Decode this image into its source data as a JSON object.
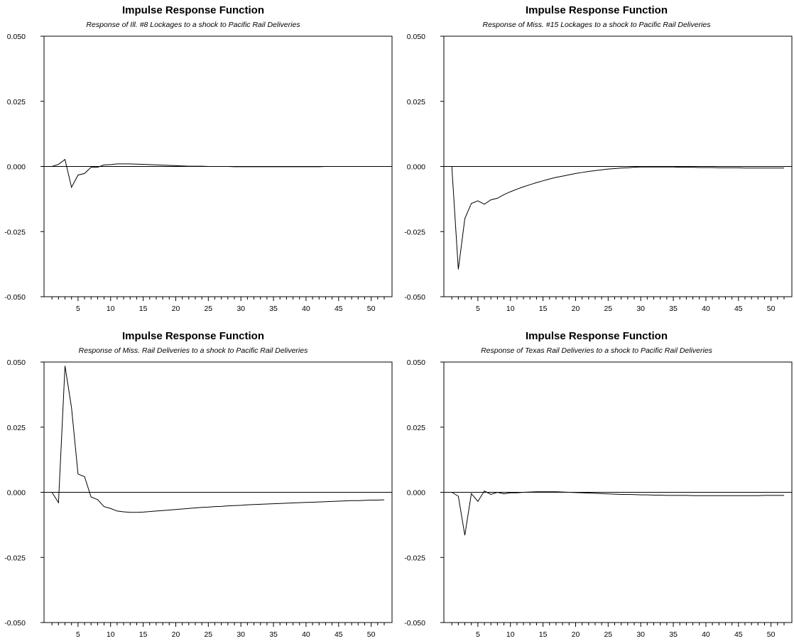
{
  "chart_data": [
    {
      "type": "line",
      "title": "Impulse Response Function",
      "subtitle": "Response of Ill. #8 Lockages to a shock to Pacific Rail Deliveries",
      "xlabel": "",
      "ylabel": "",
      "xlim": [
        0,
        52
      ],
      "ylim": [
        -0.05,
        0.05
      ],
      "yticks": [
        "0.050",
        "0.025",
        "0.000",
        "-0.025",
        "-0.050"
      ],
      "xticks": [
        "5",
        "10",
        "15",
        "20",
        "25",
        "30",
        "35",
        "40",
        "45",
        "50"
      ],
      "x": [
        1,
        2,
        3,
        4,
        5,
        6,
        7,
        8,
        9,
        10,
        11,
        12,
        13,
        14,
        15,
        16,
        17,
        18,
        19,
        20,
        21,
        22,
        23,
        24,
        25,
        26,
        27,
        28,
        29,
        30,
        31,
        32,
        33,
        34,
        35,
        36,
        37,
        38,
        39,
        40,
        41,
        42,
        43,
        44,
        45,
        46,
        47,
        48,
        49,
        50,
        51,
        52
      ],
      "series": [
        {
          "values": [
            0,
            0.0008,
            0.0027,
            -0.008,
            -0.0033,
            -0.0027,
            -0.0003,
            -0.0003,
            0.0006,
            0.0007,
            0.001,
            0.001,
            0.001,
            0.0009,
            0.0008,
            0.0007,
            0.0006,
            0.0005,
            0.0004,
            0.0003,
            0.0002,
            0.0001,
            0.0001,
            0.0001,
            0,
            0,
            0,
            0,
            -0.0001,
            -0.0001,
            -0.0001,
            -0.0001,
            -0.0001,
            -0.0001,
            -0.0001,
            -0.0001,
            -0.0001,
            -0.0001,
            -0.0001,
            -0.0001,
            -0.0001,
            -0.0001,
            0,
            0,
            0,
            0,
            0,
            0,
            0,
            0,
            0,
            0
          ]
        }
      ]
    },
    {
      "type": "line",
      "title": "Impulse Response Function",
      "subtitle": "Response of Miss. #15 Lockages to a shock to Pacific Rail Deliveries",
      "xlabel": "",
      "ylabel": "",
      "xlim": [
        0,
        52
      ],
      "ylim": [
        -0.05,
        0.05
      ],
      "yticks": [
        "0.050",
        "0.025",
        "0.000",
        "-0.025",
        "-0.050"
      ],
      "xticks": [
        "5",
        "10",
        "15",
        "20",
        "25",
        "30",
        "35",
        "40",
        "45",
        "50"
      ],
      "x": [
        1,
        2,
        3,
        4,
        5,
        6,
        7,
        8,
        9,
        10,
        11,
        12,
        13,
        14,
        15,
        16,
        17,
        18,
        19,
        20,
        21,
        22,
        23,
        24,
        25,
        26,
        27,
        28,
        29,
        30,
        31,
        32,
        33,
        34,
        35,
        36,
        37,
        38,
        39,
        40,
        41,
        42,
        43,
        44,
        45,
        46,
        47,
        48,
        49,
        50,
        51,
        52
      ],
      "series": [
        {
          "values": [
            0,
            -0.0395,
            -0.02,
            -0.0142,
            -0.0132,
            -0.0145,
            -0.0128,
            -0.0122,
            -0.0108,
            -0.0097,
            -0.0087,
            -0.0078,
            -0.007,
            -0.0062,
            -0.0055,
            -0.0048,
            -0.0042,
            -0.0037,
            -0.0032,
            -0.0027,
            -0.0023,
            -0.0019,
            -0.0016,
            -0.0013,
            -0.001,
            -0.0008,
            -0.0006,
            -0.0005,
            -0.0003,
            -0.0002,
            -0.0002,
            -0.0002,
            -0.0002,
            -0.0002,
            -0.0002,
            -0.0003,
            -0.0003,
            -0.0003,
            -0.0004,
            -0.0004,
            -0.0004,
            -0.0005,
            -0.0005,
            -0.0005,
            -0.0005,
            -0.0006,
            -0.0006,
            -0.0006,
            -0.0006,
            -0.0006,
            -0.0006,
            -0.0006
          ]
        }
      ]
    },
    {
      "type": "line",
      "title": "Impulse Response Function",
      "subtitle": "Response of Miss. Rail Deliveries to a shock to Pacific Rail Deliveries",
      "xlabel": "",
      "ylabel": "",
      "xlim": [
        0,
        52
      ],
      "ylim": [
        -0.05,
        0.05
      ],
      "yticks": [
        "0.050",
        "0.025",
        "0.000",
        "-0.025",
        "-0.050"
      ],
      "xticks": [
        "5",
        "10",
        "15",
        "20",
        "25",
        "30",
        "35",
        "40",
        "45",
        "50"
      ],
      "x": [
        1,
        2,
        3,
        4,
        5,
        6,
        7,
        8,
        9,
        10,
        11,
        12,
        13,
        14,
        15,
        16,
        17,
        18,
        19,
        20,
        21,
        22,
        23,
        24,
        25,
        26,
        27,
        28,
        29,
        30,
        31,
        32,
        33,
        34,
        35,
        36,
        37,
        38,
        39,
        40,
        41,
        42,
        43,
        44,
        45,
        46,
        47,
        48,
        49,
        50,
        51,
        52
      ],
      "series": [
        {
          "values": [
            0,
            -0.004,
            0.0485,
            0.0325,
            0.007,
            0.006,
            -0.0018,
            -0.0028,
            -0.0055,
            -0.0062,
            -0.0072,
            -0.0075,
            -0.0077,
            -0.0077,
            -0.0076,
            -0.0074,
            -0.0072,
            -0.007,
            -0.0068,
            -0.0066,
            -0.0064,
            -0.0062,
            -0.006,
            -0.0058,
            -0.0057,
            -0.0055,
            -0.0054,
            -0.0052,
            -0.0051,
            -0.005,
            -0.0048,
            -0.0047,
            -0.0046,
            -0.0045,
            -0.0044,
            -0.0043,
            -0.0042,
            -0.0041,
            -0.004,
            -0.0039,
            -0.0038,
            -0.0037,
            -0.0036,
            -0.0035,
            -0.0034,
            -0.0033,
            -0.0032,
            -0.0032,
            -0.0031,
            -0.003,
            -0.003,
            -0.0029
          ]
        }
      ]
    },
    {
      "type": "line",
      "title": "Impulse Response Function",
      "subtitle": "Response of Texas Rail Deliveries to a shock to Pacific Rail Deliveries",
      "xlabel": "",
      "ylabel": "",
      "xlim": [
        0,
        52
      ],
      "ylim": [
        -0.05,
        0.05
      ],
      "yticks": [
        "0.050",
        "0.025",
        "0.000",
        "-0.025",
        "-0.050"
      ],
      "xticks": [
        "5",
        "10",
        "15",
        "20",
        "25",
        "30",
        "35",
        "40",
        "45",
        "50"
      ],
      "x": [
        1,
        2,
        3,
        4,
        5,
        6,
        7,
        8,
        9,
        10,
        11,
        12,
        13,
        14,
        15,
        16,
        17,
        18,
        19,
        20,
        21,
        22,
        23,
        24,
        25,
        26,
        27,
        28,
        29,
        30,
        31,
        32,
        33,
        34,
        35,
        36,
        37,
        38,
        39,
        40,
        41,
        42,
        43,
        44,
        45,
        46,
        47,
        48,
        49,
        50,
        51,
        52
      ],
      "series": [
        {
          "values": [
            0,
            -0.0015,
            -0.0165,
            -0.0005,
            -0.0035,
            0.0005,
            -0.0008,
            0,
            -0.0006,
            -0.0002,
            -0.0002,
            0,
            0.0001,
            0.0002,
            0.0002,
            0.0002,
            0.0002,
            0.0001,
            0,
            -0.0001,
            -0.0002,
            -0.0003,
            -0.0004,
            -0.0005,
            -0.0006,
            -0.0007,
            -0.0008,
            -0.0008,
            -0.0009,
            -0.001,
            -0.001,
            -0.0011,
            -0.0011,
            -0.0012,
            -0.0012,
            -0.0012,
            -0.0012,
            -0.0013,
            -0.0013,
            -0.0013,
            -0.0013,
            -0.0013,
            -0.0013,
            -0.0013,
            -0.0013,
            -0.0013,
            -0.0013,
            -0.0013,
            -0.0012,
            -0.0012,
            -0.0012,
            -0.0012
          ]
        }
      ]
    }
  ]
}
